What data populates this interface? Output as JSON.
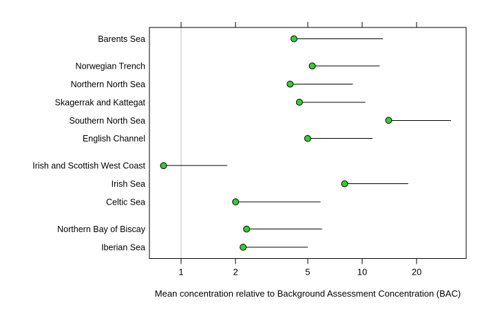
{
  "chart_data": {
    "type": "scatter",
    "subtype": "dot-with-upper-range",
    "title": "",
    "xlabel": "Mean concentration relative to Background Assessment Concentration (BAC)",
    "ylabel": "",
    "x_scale": "log",
    "x_ticks": [
      1,
      2,
      5,
      10,
      20
    ],
    "xlim": [
      0.67,
      37.5
    ],
    "reference_line_x": 1,
    "legend": "none",
    "grid": "off",
    "rows": [
      {
        "label": "Barents Sea",
        "mean": 4.2,
        "upper": 13.0,
        "gap_before": false
      },
      {
        "label": "Norwegian Trench",
        "mean": 5.3,
        "upper": 12.5,
        "gap_before": true
      },
      {
        "label": "Northern North Sea",
        "mean": 4.0,
        "upper": 8.9,
        "gap_before": false
      },
      {
        "label": "Skagerrak and Kattegat",
        "mean": 4.5,
        "upper": 10.4,
        "gap_before": false
      },
      {
        "label": "Southern North Sea",
        "mean": 14.0,
        "upper": 31.0,
        "gap_before": false
      },
      {
        "label": "English Channel",
        "mean": 5.0,
        "upper": 11.4,
        "gap_before": false
      },
      {
        "label": "Irish and Scottish West Coast",
        "mean": 0.8,
        "upper": 1.8,
        "gap_before": true
      },
      {
        "label": "Irish Sea",
        "mean": 8.0,
        "upper": 18.0,
        "gap_before": false
      },
      {
        "label": "Celtic Sea",
        "mean": 2.0,
        "upper": 5.9,
        "gap_before": false
      },
      {
        "label": "Northern Bay of Biscay",
        "mean": 2.3,
        "upper": 6.0,
        "gap_before": true
      },
      {
        "label": "Iberian Sea",
        "mean": 2.2,
        "upper": 5.0,
        "gap_before": false
      }
    ],
    "colors": {
      "dot_fill": "#33CC33",
      "dot_border": "#000000",
      "range_line": "#000000",
      "reference_line": "#C0C0C0",
      "axis": "#000000",
      "text": "#000000",
      "background": "#FFFFFF"
    }
  }
}
